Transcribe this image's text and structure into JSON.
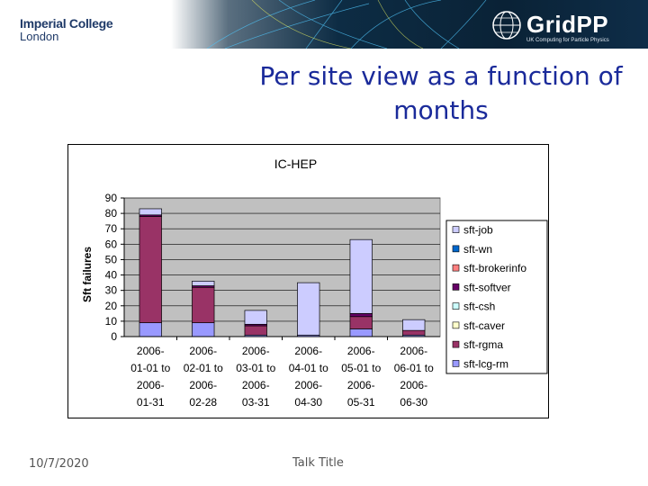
{
  "header": {
    "institution_line1": "Imperial College",
    "institution_line2": "London",
    "project_name": "GridPP",
    "project_tagline": "UK Computing for Particle Physics"
  },
  "slide": {
    "title": "Per site view as a function of months",
    "footer_date": "10/7/2020",
    "footer_title": "Talk Title"
  },
  "chart_data": {
    "type": "bar",
    "stacked": true,
    "title": "IC-HEP",
    "ylabel": "Sft failures",
    "xlabel": "",
    "ylim": [
      0,
      90
    ],
    "yticks": [
      0,
      10,
      20,
      30,
      40,
      50,
      60,
      70,
      80,
      90
    ],
    "grid": true,
    "legend_position": "right",
    "categories": [
      [
        "2006-",
        "01-01 to",
        "2006-",
        "01-31"
      ],
      [
        "2006-",
        "02-01 to",
        "2006-",
        "02-28"
      ],
      [
        "2006-",
        "03-01 to",
        "2006-",
        "03-31"
      ],
      [
        "2006-",
        "04-01 to",
        "2006-",
        "04-30"
      ],
      [
        "2006-",
        "05-01 to",
        "2006-",
        "05-31"
      ],
      [
        "2006-",
        "06-01 to",
        "2006-",
        "06-30"
      ]
    ],
    "series": [
      {
        "name": "sft-lcg-rm",
        "color": "#9999ff",
        "values": [
          9,
          9,
          1,
          1,
          5,
          1
        ]
      },
      {
        "name": "sft-rgma",
        "color": "#993366",
        "values": [
          69,
          23,
          6,
          0,
          8,
          3
        ]
      },
      {
        "name": "sft-caver",
        "color": "#ffffcc",
        "values": [
          0,
          0,
          0,
          0,
          0,
          0
        ]
      },
      {
        "name": "sft-csh",
        "color": "#ccffff",
        "values": [
          0,
          0,
          0,
          0,
          0,
          0
        ]
      },
      {
        "name": "sft-softver",
        "color": "#660066",
        "values": [
          1,
          1,
          1,
          0,
          2,
          0
        ]
      },
      {
        "name": "sft-brokerinfo",
        "color": "#ff8080",
        "values": [
          0,
          0,
          0,
          0,
          0,
          0
        ]
      },
      {
        "name": "sft-wn",
        "color": "#0066cc",
        "values": [
          0,
          0,
          0,
          0,
          0,
          0
        ]
      },
      {
        "name": "sft-job",
        "color": "#ccccff",
        "values": [
          4,
          3,
          9,
          34,
          48,
          7
        ]
      }
    ],
    "colors": {
      "plot_background": "#c0c0c0",
      "bar_edge": "#000000",
      "gridline": "#000000"
    }
  }
}
